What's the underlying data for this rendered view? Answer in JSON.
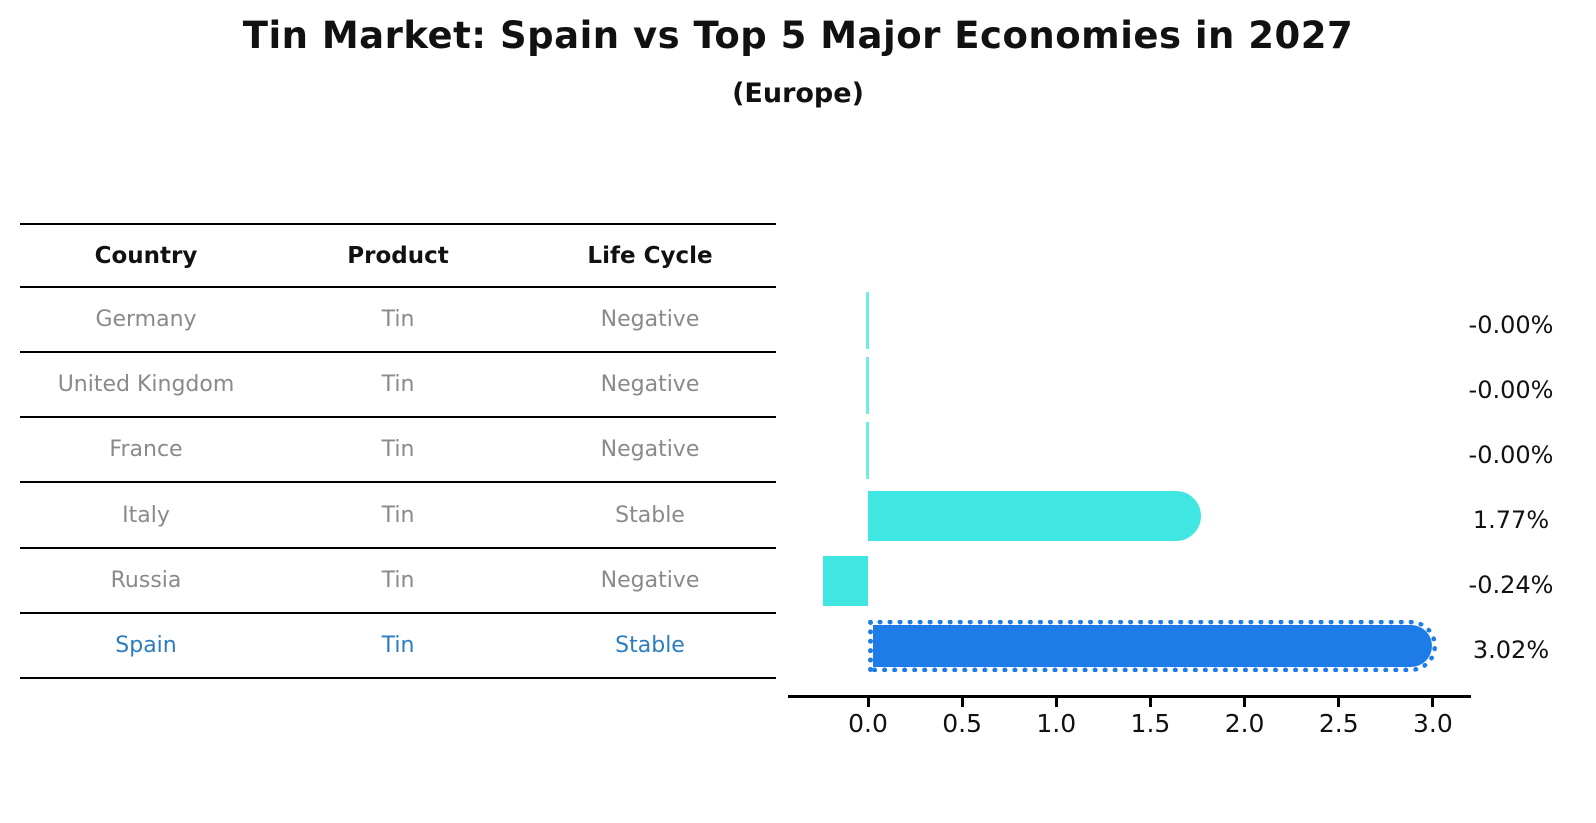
{
  "title": "Tin Market: Spain vs Top 5 Major Economies in 2027",
  "subtitle": "(Europe)",
  "table": {
    "columns": [
      "Country",
      "Product",
      "Life Cycle"
    ],
    "rows": [
      {
        "country": "Germany",
        "product": "Tin",
        "life_cycle": "Negative",
        "highlight": false
      },
      {
        "country": "United Kingdom",
        "product": "Tin",
        "life_cycle": "Negative",
        "highlight": false
      },
      {
        "country": "France",
        "product": "Tin",
        "life_cycle": "Negative",
        "highlight": false
      },
      {
        "country": "Italy",
        "product": "Tin",
        "life_cycle": "Stable",
        "highlight": false
      },
      {
        "country": "Russia",
        "product": "Tin",
        "life_cycle": "Negative",
        "highlight": false
      },
      {
        "country": "Spain",
        "product": "Tin",
        "life_cycle": "Stable",
        "highlight": true
      }
    ]
  },
  "chart_data": {
    "type": "bar",
    "orientation": "horizontal",
    "title": "Tin Market: Spain vs Top 5 Major Economies in 2027",
    "subtitle": "(Europe)",
    "categories": [
      "Germany",
      "United Kingdom",
      "France",
      "Italy",
      "Russia",
      "Spain"
    ],
    "values": [
      -0.0,
      -0.0,
      -0.0,
      1.77,
      -0.24,
      3.02
    ],
    "value_labels": [
      "-0.00%",
      "-0.00%",
      "-0.00%",
      "1.77%",
      "-0.24%",
      "3.02%"
    ],
    "x_ticks": [
      "0.0",
      "0.5",
      "1.0",
      "1.5",
      "2.0",
      "2.5",
      "3.0"
    ],
    "xlim": [
      -0.45,
      3.2
    ],
    "grid": false,
    "legend": "none",
    "highlight_category": "Spain",
    "value_unit": "%"
  },
  "colors": {
    "bar": "#40E6E1",
    "highlight_bar": "#1E7CE8",
    "highlight_text": "#2B7DC0",
    "row_text": "#8A8A8A",
    "text": "#111111"
  }
}
